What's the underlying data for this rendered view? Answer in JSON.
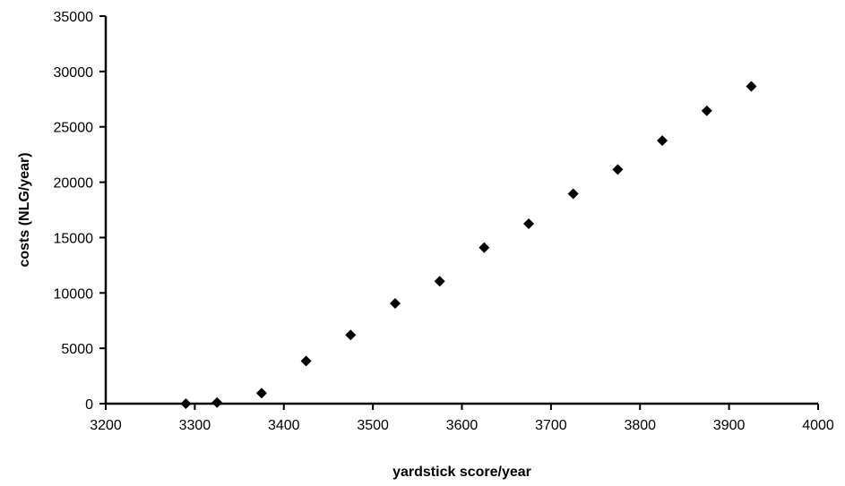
{
  "chart_data": {
    "type": "scatter",
    "title": "",
    "xlabel": "yardstick score/year",
    "ylabel": "costs (NLG/year)",
    "xlim": [
      3200,
      4000
    ],
    "ylim": [
      0,
      35000
    ],
    "x_ticks": [
      3200,
      3300,
      3400,
      3500,
      3600,
      3700,
      3800,
      3900,
      4000
    ],
    "y_ticks": [
      0,
      5000,
      10000,
      15000,
      20000,
      25000,
      30000,
      35000
    ],
    "grid": false,
    "legend": "none",
    "marker": "diamond",
    "marker_color": "#000000",
    "series": [
      {
        "x": [
          3290,
          3325,
          3375,
          3425,
          3475,
          3525,
          3575,
          3625,
          3675,
          3725,
          3775,
          3825,
          3875,
          3925
        ],
        "y": [
          0,
          100,
          950,
          3850,
          6200,
          9050,
          11050,
          14100,
          16250,
          18950,
          21150,
          23750,
          26450,
          28650
        ]
      }
    ]
  }
}
